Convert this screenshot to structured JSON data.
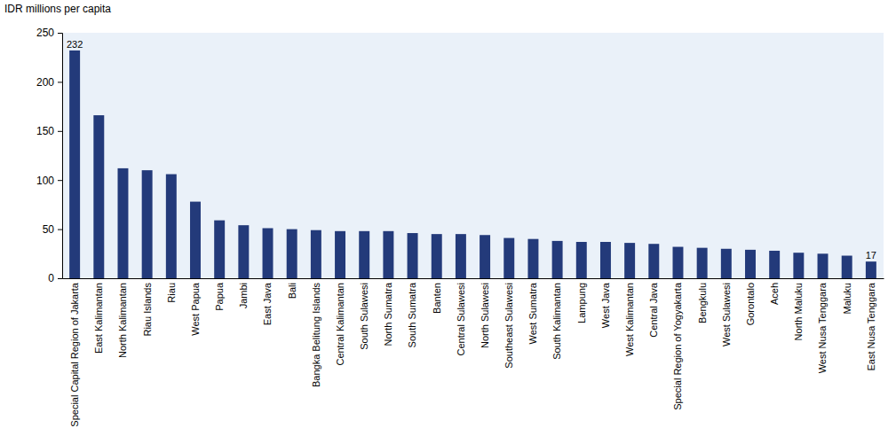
{
  "chart_data": {
    "type": "bar",
    "ylabel": "IDR millions per capita",
    "categories": [
      "Special Capital Region of Jakarta",
      "East Kalimantan",
      "North Kalimantan",
      "Riau Islands",
      "Riau",
      "West Papua",
      "Papua",
      "Jambi",
      "East Java",
      "Bali",
      "Bangka Belitung Islands",
      "Central Kalimantan",
      "South Sulawesi",
      "North Sumatra",
      "South Sumatra",
      "Banten",
      "Central Sulawesi",
      "North Sulawesi",
      "Southeast Sulawesi",
      "West Sumatra",
      "South Kalimantan",
      "Lampung",
      "West Java",
      "West Kalimantan",
      "Central Java",
      "Special Region of Yogyakarta",
      "Bengkulu",
      "West Sulawesi",
      "Gorontalo",
      "Aceh",
      "North Maluku",
      "West Nusa Tenggara",
      "Maluku",
      "East Nusa Tenggara"
    ],
    "values": [
      232,
      166,
      112,
      110,
      106,
      78,
      59,
      54,
      51,
      50,
      49,
      48,
      48,
      48,
      46,
      45,
      45,
      44,
      41,
      40,
      38,
      37,
      37,
      36,
      35,
      32,
      31,
      30,
      29,
      28,
      26,
      25,
      23,
      17
    ],
    "value_labels": [
      "232",
      null,
      null,
      null,
      null,
      null,
      null,
      null,
      null,
      null,
      null,
      null,
      null,
      null,
      null,
      null,
      null,
      null,
      null,
      null,
      null,
      null,
      null,
      null,
      null,
      null,
      null,
      null,
      null,
      null,
      null,
      null,
      null,
      "17"
    ],
    "data_labels": true,
    "color": "#233a7a",
    "ylim": [
      0,
      250
    ],
    "yticks": [
      0,
      50,
      100,
      150,
      200,
      250
    ],
    "grid": false
  }
}
